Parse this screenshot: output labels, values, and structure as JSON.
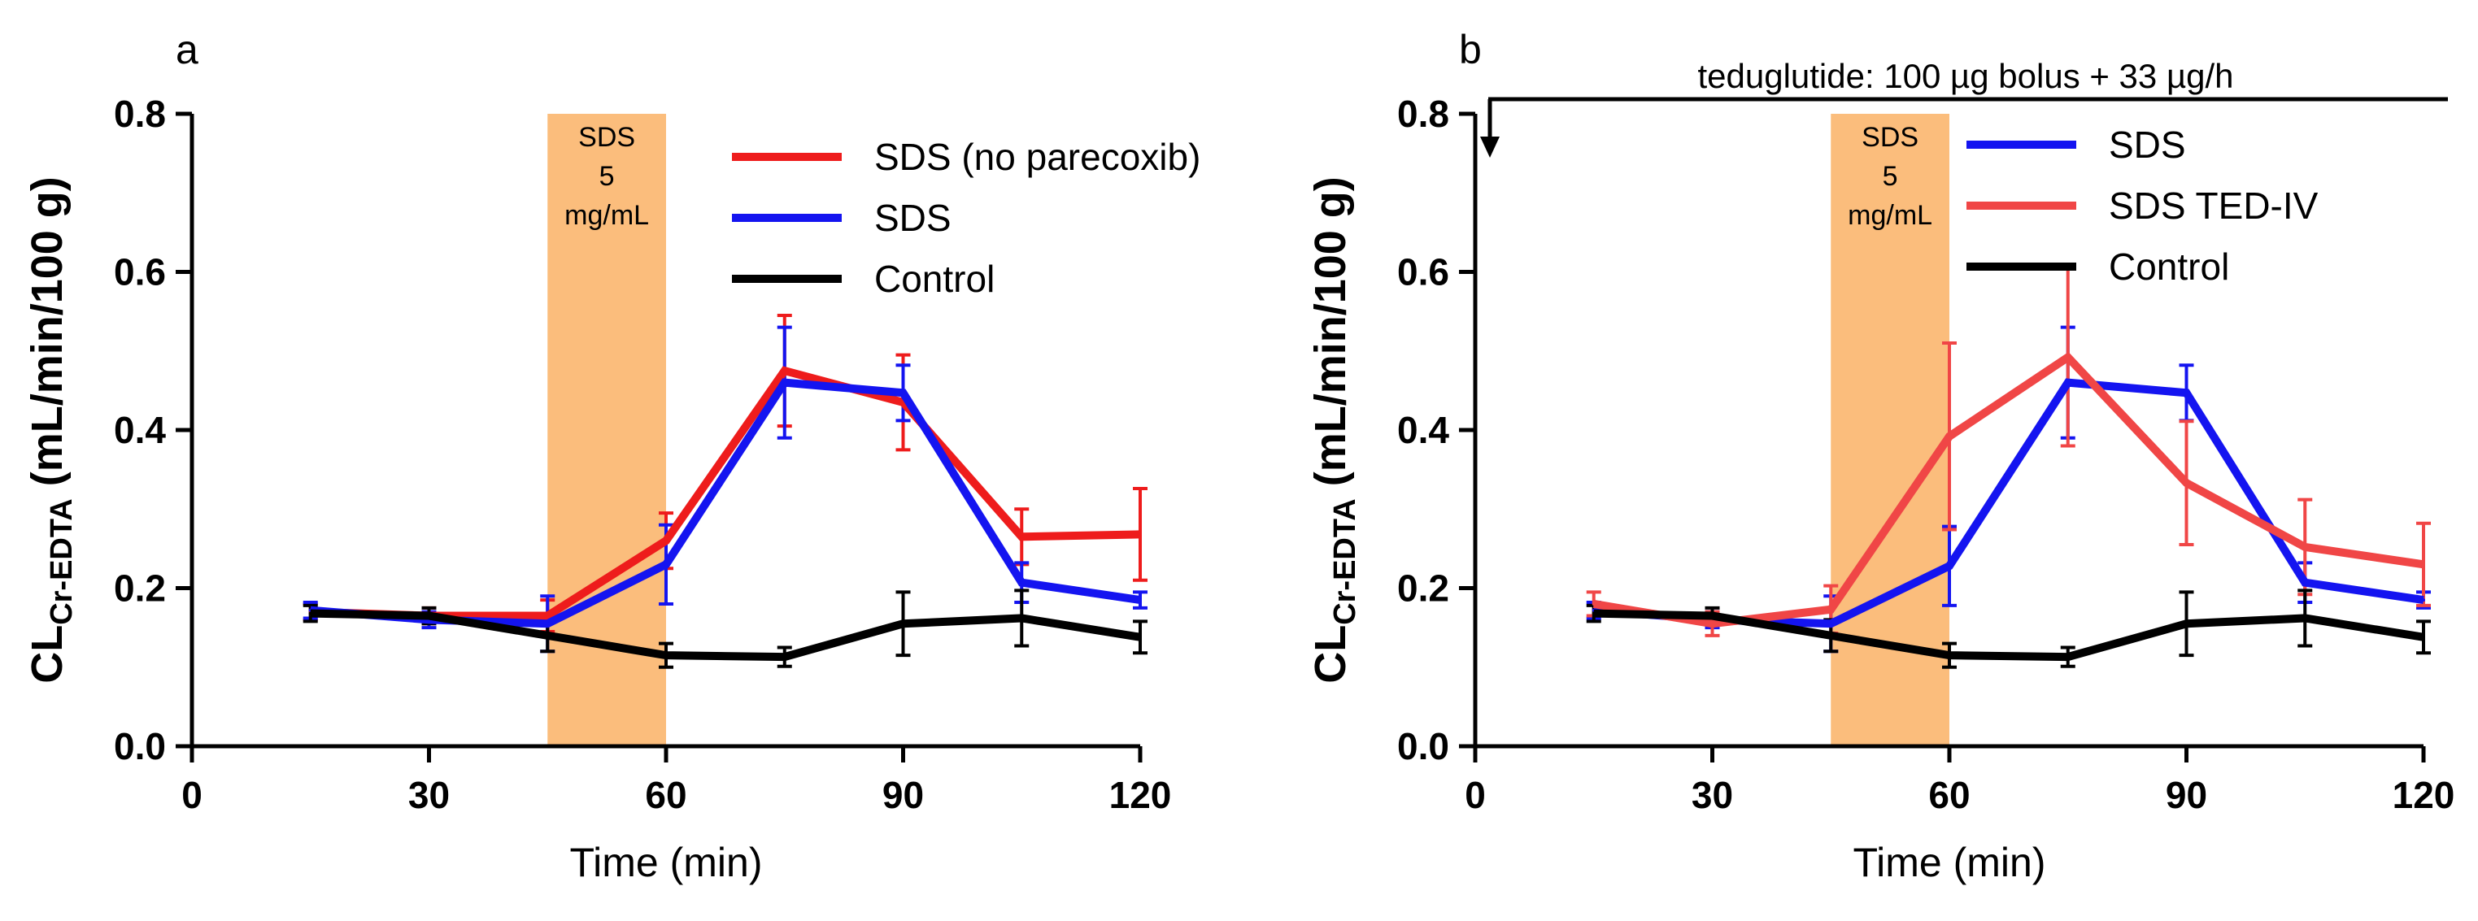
{
  "colors": {
    "red": "#ee1c1c",
    "blue": "#1414f0",
    "black": "#000000",
    "lightred": "#f04646",
    "shade": "#fbbd7c"
  },
  "chart_data": [
    {
      "type": "line",
      "panel_label": "a",
      "title": "",
      "xlabel": "Time (min)",
      "ylabel_main": "CL",
      "ylabel_sub": "Cr-EDTA",
      "ylabel_tail": " (mL/min/100 g)",
      "xlim": [
        0,
        120
      ],
      "ylim": [
        0,
        0.8
      ],
      "x_ticks": [
        0,
        30,
        60,
        90,
        120
      ],
      "x_tick_labels": [
        "0",
        "30",
        "60",
        "90",
        "120"
      ],
      "y_ticks": [
        0,
        0.2,
        0.4,
        0.6,
        0.8
      ],
      "y_tick_labels": [
        "0.0",
        "0.2",
        "0.4",
        "0.6",
        "0.8"
      ],
      "shaded_region": {
        "x": [
          45,
          60
        ],
        "label_lines": [
          "SDS",
          "5",
          "mg/mL"
        ]
      },
      "legend_position": "top-right",
      "x": [
        15,
        30,
        45,
        60,
        75,
        90,
        105,
        120
      ],
      "series": [
        {
          "name": "SDS (no parecoxib)",
          "color": "#ee1c1c",
          "values": [
            0.17,
            0.165,
            0.165,
            0.26,
            0.475,
            0.435,
            0.265,
            0.268
          ],
          "errors": [
            0.01,
            0.01,
            0.02,
            0.035,
            0.07,
            0.06,
            0.035,
            0.058
          ]
        },
        {
          "name": "SDS",
          "color": "#1414f0",
          "values": [
            0.172,
            0.16,
            0.155,
            0.23,
            0.46,
            0.447,
            0.207,
            0.185
          ],
          "errors": [
            0.01,
            0.01,
            0.035,
            0.05,
            0.07,
            0.035,
            0.025,
            0.01
          ]
        },
        {
          "name": "Control",
          "color": "#000000",
          "values": [
            0.168,
            0.165,
            0.14,
            0.115,
            0.113,
            0.155,
            0.162,
            0.138
          ],
          "errors": [
            0.01,
            0.01,
            0.02,
            0.015,
            0.012,
            0.04,
            0.035,
            0.02
          ]
        }
      ]
    },
    {
      "type": "line",
      "panel_label": "b",
      "title": "",
      "xlabel": "Time (min)",
      "ylabel_main": "CL",
      "ylabel_sub": "Cr-EDTA",
      "ylabel_tail": " (mL/min/100 g)",
      "xlim": [
        0,
        120
      ],
      "ylim": [
        0,
        0.8
      ],
      "x_ticks": [
        0,
        30,
        60,
        90,
        120
      ],
      "x_tick_labels": [
        "0",
        "30",
        "60",
        "90",
        "120"
      ],
      "y_ticks": [
        0,
        0.2,
        0.4,
        0.6,
        0.8
      ],
      "y_tick_labels": [
        "0.0",
        "0.2",
        "0.4",
        "0.6",
        "0.8"
      ],
      "shaded_region": {
        "x": [
          45,
          60
        ],
        "label_lines": [
          "SDS",
          "5",
          "mg/mL"
        ]
      },
      "annotation": "teduglutide: 100 µg bolus + 33 µg/h",
      "legend_position": "top-right",
      "x": [
        15,
        30,
        45,
        60,
        75,
        90,
        105,
        120
      ],
      "series": [
        {
          "name": "SDS",
          "color": "#1414f0",
          "values": [
            0.172,
            0.16,
            0.155,
            0.228,
            0.46,
            0.447,
            0.207,
            0.185
          ],
          "errors": [
            0.01,
            0.01,
            0.035,
            0.05,
            0.07,
            0.035,
            0.025,
            0.01
          ]
        },
        {
          "name": "SDS TED-IV",
          "color": "#f04646",
          "values": [
            0.18,
            0.155,
            0.173,
            0.392,
            0.492,
            0.333,
            0.252,
            0.23
          ],
          "errors": [
            0.015,
            0.015,
            0.03,
            0.118,
            0.112,
            0.078,
            0.06,
            0.052
          ]
        },
        {
          "name": "Control",
          "color": "#000000",
          "values": [
            0.168,
            0.165,
            0.14,
            0.115,
            0.113,
            0.155,
            0.162,
            0.138
          ],
          "errors": [
            0.01,
            0.01,
            0.02,
            0.015,
            0.012,
            0.04,
            0.035,
            0.02
          ]
        }
      ]
    }
  ]
}
